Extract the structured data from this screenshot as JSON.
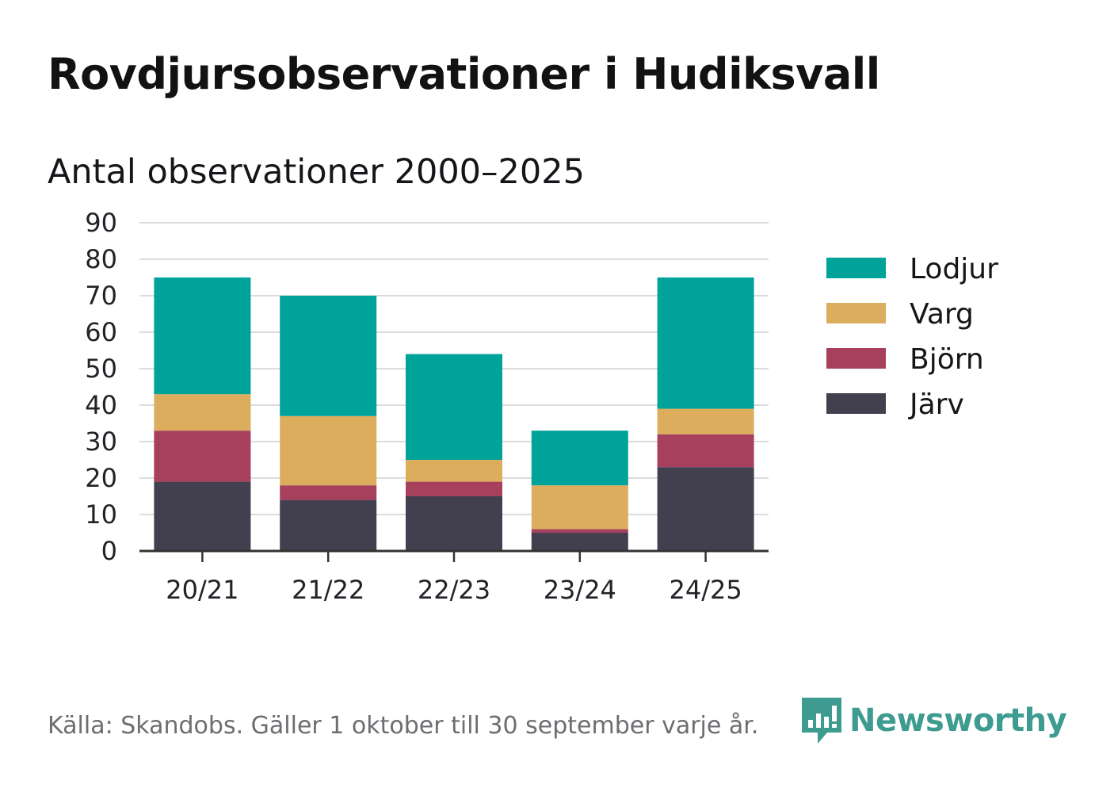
{
  "title": "Rovdjursobservationer i Hudiksvall",
  "subtitle": "Antal observationer 2000–2025",
  "footer": {
    "source": "Källa: Skandobs. Gäller 1 oktober till 30 september varje år.",
    "brand": "Newsworthy",
    "brand_icon": "newsworthy-logo-icon",
    "brand_color": "#3d9b8f"
  },
  "chart_data": {
    "type": "bar",
    "stacked": true,
    "categories": [
      "20/21",
      "21/22",
      "22/23",
      "23/24",
      "24/25"
    ],
    "series": [
      {
        "name": "Järv",
        "color": "#42404e",
        "values": [
          19,
          14,
          15,
          5,
          23
        ]
      },
      {
        "name": "Björn",
        "color": "#a6405c",
        "values": [
          14,
          4,
          4,
          1,
          9
        ]
      },
      {
        "name": "Varg",
        "color": "#dbad5c",
        "values": [
          10,
          19,
          6,
          12,
          7
        ]
      },
      {
        "name": "Lodjur",
        "color": "#00a39a",
        "values": [
          32,
          33,
          29,
          15,
          36
        ]
      }
    ],
    "legend_order": [
      "Lodjur",
      "Varg",
      "Björn",
      "Järv"
    ],
    "legend_position": "right",
    "ylim": [
      0,
      90
    ],
    "yticks": [
      0,
      10,
      20,
      30,
      40,
      50,
      60,
      70,
      80,
      90
    ],
    "grid": true,
    "xlabel": "",
    "ylabel": ""
  }
}
